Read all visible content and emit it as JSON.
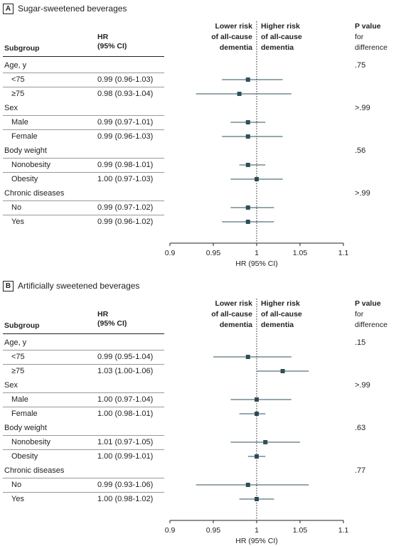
{
  "chart_data": [
    {
      "type": "forest",
      "panel_label": "A",
      "title": "Sugar-sweetened beverages",
      "col_subgroup": "Subgroup",
      "col_hr_1": "HR",
      "col_hr_2": "(95% CI)",
      "col_p_1": "P value",
      "col_p_2": "for",
      "col_p_3": "difference",
      "label_lower_1": "Lower risk",
      "label_lower_2": "of all-cause",
      "label_lower_3": "dementia",
      "label_higher_1": "Higher risk",
      "label_higher_2": "of all-cause",
      "label_higher_3": "dementia",
      "xlabel": "HR (95% CI)",
      "xlim": [
        0.9,
        1.1
      ],
      "xticks": [
        "0.9",
        "0.95",
        "1",
        "1.05",
        "1.1"
      ],
      "groups": [
        {
          "name": "Age, y",
          "p": ".75",
          "rows": [
            {
              "label": "<75",
              "text": "0.99 (0.96-1.03)",
              "hr": 0.99,
              "lo": 0.96,
              "hi": 1.03
            },
            {
              "label": "≥75",
              "text": "0.98 (0.93-1.04)",
              "hr": 0.98,
              "lo": 0.93,
              "hi": 1.04
            }
          ]
        },
        {
          "name": "Sex",
          "p": ">.99",
          "rows": [
            {
              "label": "Male",
              "text": "0.99 (0.97-1.01)",
              "hr": 0.99,
              "lo": 0.97,
              "hi": 1.01
            },
            {
              "label": "Female",
              "text": "0.99 (0.96-1.03)",
              "hr": 0.99,
              "lo": 0.96,
              "hi": 1.03
            }
          ]
        },
        {
          "name": "Body weight",
          "p": ".56",
          "rows": [
            {
              "label": "Nonobesity",
              "text": "0.99 (0.98-1.01)",
              "hr": 0.99,
              "lo": 0.98,
              "hi": 1.01
            },
            {
              "label": "Obesity",
              "text": "1.00 (0.97-1.03)",
              "hr": 1.0,
              "lo": 0.97,
              "hi": 1.03
            }
          ]
        },
        {
          "name": "Chronic diseases",
          "p": ">.99",
          "rows": [
            {
              "label": "No",
              "text": "0.99 (0.97-1.02)",
              "hr": 0.99,
              "lo": 0.97,
              "hi": 1.02
            },
            {
              "label": "Yes",
              "text": "0.99 (0.96-1.02)",
              "hr": 0.99,
              "lo": 0.96,
              "hi": 1.02
            }
          ]
        }
      ]
    },
    {
      "type": "forest",
      "panel_label": "B",
      "title": "Artificially sweetened beverages",
      "col_subgroup": "Subgroup",
      "col_hr_1": "HR",
      "col_hr_2": "(95% CI)",
      "col_p_1": "P value",
      "col_p_2": "for",
      "col_p_3": "difference",
      "label_lower_1": "Lower risk",
      "label_lower_2": "of all-cause",
      "label_lower_3": "dementia",
      "label_higher_1": "Higher risk",
      "label_higher_2": "of all-cause",
      "label_higher_3": "dementia",
      "xlabel": "HR (95% CI)",
      "xlim": [
        0.9,
        1.1
      ],
      "xticks": [
        "0.9",
        "0.95",
        "1",
        "1.05",
        "1.1"
      ],
      "groups": [
        {
          "name": "Age, y",
          "p": ".15",
          "rows": [
            {
              "label": "<75",
              "text": "0.99 (0.95-1.04)",
              "hr": 0.99,
              "lo": 0.95,
              "hi": 1.04
            },
            {
              "label": "≥75",
              "text": "1.03 (1.00-1.06)",
              "hr": 1.03,
              "lo": 1.0,
              "hi": 1.06
            }
          ]
        },
        {
          "name": "Sex",
          "p": ">.99",
          "rows": [
            {
              "label": "Male",
              "text": "1.00 (0.97-1.04)",
              "hr": 1.0,
              "lo": 0.97,
              "hi": 1.04
            },
            {
              "label": "Female",
              "text": "1.00 (0.98-1.01)",
              "hr": 1.0,
              "lo": 0.98,
              "hi": 1.01
            }
          ]
        },
        {
          "name": "Body weight",
          "p": ".63",
          "rows": [
            {
              "label": "Nonobesity",
              "text": "1.01 (0.97-1.05)",
              "hr": 1.01,
              "lo": 0.97,
              "hi": 1.05
            },
            {
              "label": "Obesity",
              "text": "1.00 (0.99-1.01)",
              "hr": 1.0,
              "lo": 0.99,
              "hi": 1.01
            }
          ]
        },
        {
          "name": "Chronic diseases",
          "p": ".77",
          "rows": [
            {
              "label": "No",
              "text": "0.99 (0.93-1.06)",
              "hr": 0.99,
              "lo": 0.93,
              "hi": 1.06
            },
            {
              "label": "Yes",
              "text": "1.00 (0.98-1.02)",
              "hr": 1.0,
              "lo": 0.98,
              "hi": 1.02
            }
          ]
        }
      ]
    }
  ],
  "colors": {
    "marker": "#2f4f5a",
    "text": "#222222",
    "axis": "#222222"
  }
}
